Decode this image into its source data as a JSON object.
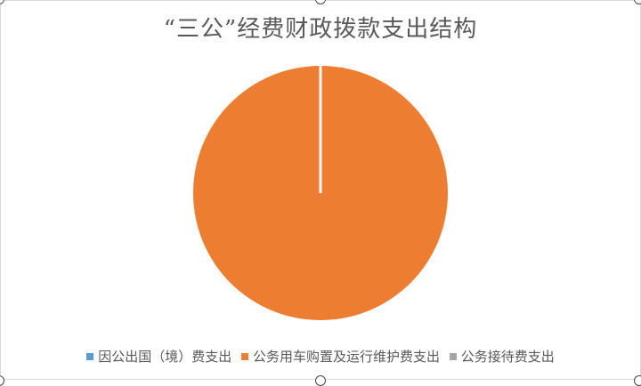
{
  "chart_data": {
    "type": "pie",
    "title": "“三公”经费财政拨款支出结构",
    "categories": [
      "因公出国（境）费支出",
      "公务用车购置及运行维护费支出",
      "公务接待费支出"
    ],
    "values": [
      0,
      100,
      0
    ],
    "colors": [
      "#5b9bd5",
      "#ed7d31",
      "#a5a5a5"
    ],
    "legend": "bottom"
  }
}
